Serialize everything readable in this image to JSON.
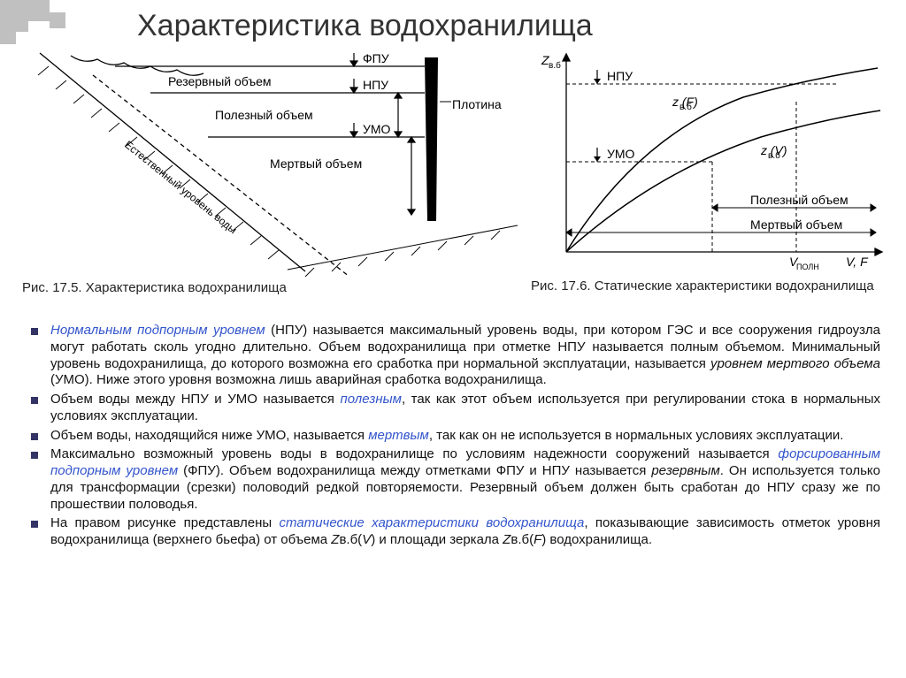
{
  "title": "Характеристика водохранилища",
  "figLeft": {
    "labels": {
      "fpu": "ФПУ",
      "npu": "НПУ",
      "umo": "УМО",
      "reserve": "Резервный объем",
      "useful": "Полезный объем",
      "dead": "Мертвый объем",
      "dam": "Плотина",
      "naturalLevel": "Естественный уровень воды"
    },
    "caption": "Рис. 17.5. Характеристика водохранилища",
    "colors": {
      "line": "#000000"
    }
  },
  "figRight": {
    "labels": {
      "zAxis": "Z",
      "zSub": "в.б",
      "npu": "НПУ",
      "umo": "УМО",
      "curveF": "z      (F)",
      "curveV": "z      (V)",
      "curveSub": "в.б",
      "useful": "Полезный объем",
      "dead": "Мертвый объем",
      "xAxisV": "V",
      "xAxisVsub": "ПОЛН",
      "xAxisVF": "V, F"
    },
    "caption": "Рис. 17.6. Статические характеристики водохранилища",
    "colors": {
      "line": "#000000"
    }
  },
  "bullets": [
    {
      "parts": [
        {
          "t": "Нормальным подпорным уровнем",
          "c": "em-blue"
        },
        {
          "t": " (НПУ) называется максимальный уровень воды, при котором ГЭС и все сооружения гидроузла могут работать сколь угодно длительно. Объем водохранилища при отметке НПУ называется полным объемом. Минимальный уровень водохранилища, до которого возможна его сработка при нормальной эксплуатации, называется "
        },
        {
          "t": "уровнем мертвого объема",
          "c": "em-black"
        },
        {
          "t": " (УМО). Ниже этого уровня возможна лишь аварийная сработка водохранилища."
        }
      ]
    },
    {
      "parts": [
        {
          "t": "Объем воды между НПУ и УМО называется "
        },
        {
          "t": "полезным",
          "c": "em-blue"
        },
        {
          "t": ", так как этот объем используется при регулировании стока в нормальных условиях эксплуатации."
        }
      ]
    },
    {
      "parts": [
        {
          "t": "Объем воды, находящийся ниже УМО, называется "
        },
        {
          "t": "мертвым",
          "c": "em-blue"
        },
        {
          "t": ", так как он не используется в нормальных условиях эксплуатации."
        }
      ]
    },
    {
      "parts": [
        {
          "t": "Максимально возможный уровень воды в водохранилище по условиям надежности сооружений называется "
        },
        {
          "t": "форсированным подпорным уровнем",
          "c": "em-blue"
        },
        {
          "t": " (ФПУ). Объем водохранилища между отметками ФПУ и НПУ называется "
        },
        {
          "t": "резервным",
          "c": "em-black"
        },
        {
          "t": ". Он используется только для трансформации (срезки) половодий редкой повторяемости. Резервный объем должен быть сработан до НПУ сразу же по прошествии половодья."
        }
      ]
    },
    {
      "parts": [
        {
          "t": "На правом рисунке представлены "
        },
        {
          "t": "статические характеристики водохранилища",
          "c": "em-blue"
        },
        {
          "t": ", показывающие зависимость отметок уровня водохранилища (верхнего бьефа) от объема "
        },
        {
          "t": "Z",
          "c": "em-black"
        },
        {
          "t": "в.б("
        },
        {
          "t": "V",
          "c": "em-black"
        },
        {
          "t": ") и площади зеркала "
        },
        {
          "t": "Z",
          "c": "em-black"
        },
        {
          "t": "в.б("
        },
        {
          "t": "F",
          "c": "em-black"
        },
        {
          "t": ") водохранилища."
        }
      ]
    }
  ]
}
